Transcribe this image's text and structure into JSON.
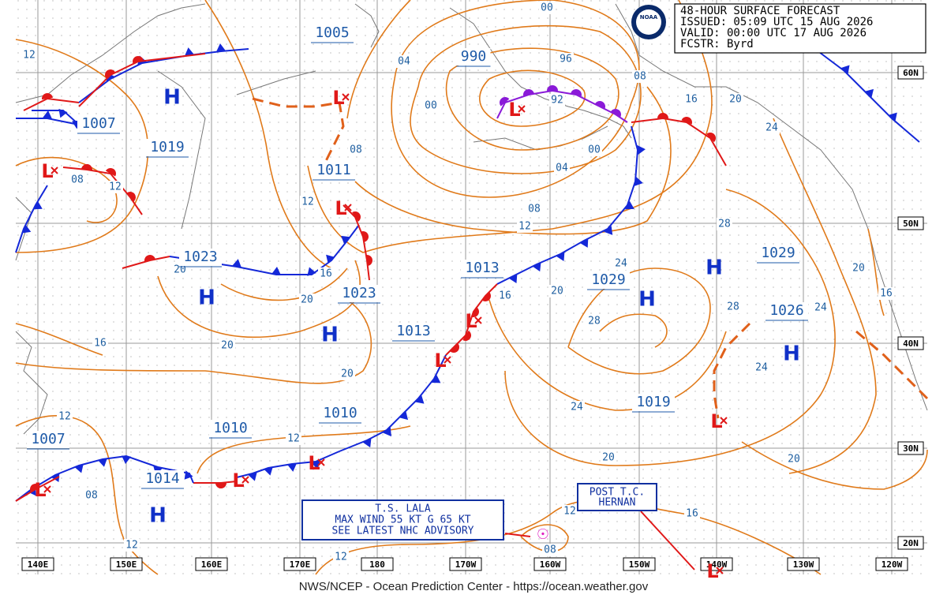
{
  "header": {
    "lines": [
      "48-HOUR SURFACE FORECAST",
      "ISSUED: 05:09 UTC 15 AUG 2026",
      "VALID: 00:00 UTC 17 AUG 2026",
      "FCSTR: Byrd"
    ]
  },
  "logo": "NOAA",
  "footer": "NWS/NCEP - Ocean Prediction Center - https://ocean.weather.gov",
  "longitudes": [
    "140E",
    "150E",
    "160E",
    "170E",
    "180",
    "170W",
    "160W",
    "150W",
    "140W",
    "130W",
    "120W"
  ],
  "latitudes": [
    "60N",
    "50N",
    "40N",
    "30N",
    "20N"
  ],
  "pressures": [
    "1005",
    "990",
    "1007",
    "1019",
    "1011",
    "1023",
    "1023",
    "1013",
    "1029",
    "1029",
    "1013",
    "1026",
    "1010",
    "1010",
    "1019",
    "1007",
    "1014"
  ],
  "isobars": [
    "12",
    "04",
    "00",
    "96",
    "92",
    "00",
    "08",
    "16",
    "20",
    "24",
    "08",
    "00",
    "04",
    "08",
    "12",
    "12",
    "08",
    "12",
    "28",
    "20",
    "16",
    "24",
    "20",
    "16",
    "20",
    "16",
    "28",
    "24",
    "20",
    "28",
    "16",
    "20",
    "20",
    "24",
    "24",
    "12",
    "12",
    "20",
    "20",
    "08",
    "12",
    "16",
    "12",
    "08",
    "12"
  ],
  "symbols": {
    "high": "H",
    "low": "L"
  },
  "storms": [
    {
      "lines": [
        "T.S. LALA",
        "MAX WIND 55 KT G 65 KT",
        "SEE LATEST NHC ADVISORY"
      ]
    },
    {
      "lines": [
        "POST T.C.",
        "HERNAN"
      ]
    }
  ]
}
